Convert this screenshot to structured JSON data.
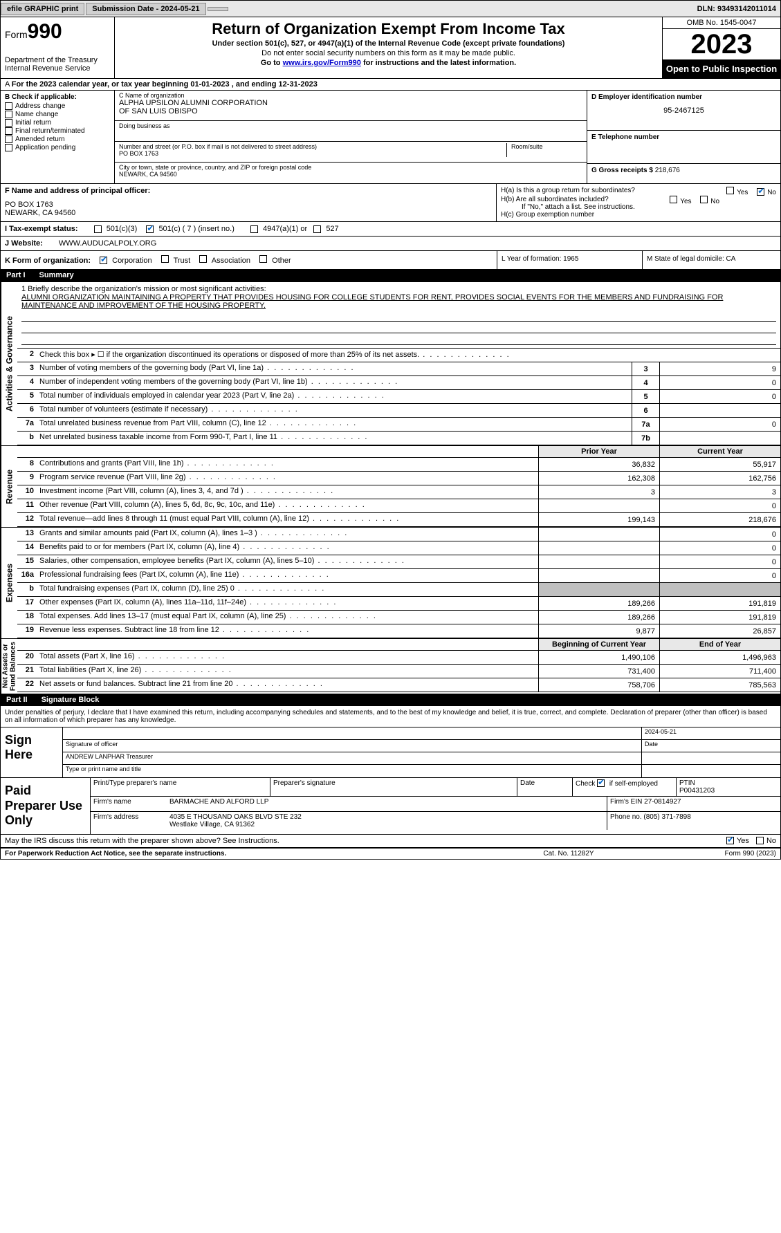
{
  "topbar": {
    "efile": "efile GRAPHIC print",
    "sub_label": "Submission Date - 2024-05-21",
    "dln": "DLN: 93493142011014"
  },
  "header": {
    "form_label": "Form",
    "form_num": "990",
    "dept": "Department of the Treasury\nInternal Revenue Service",
    "title": "Return of Organization Exempt From Income Tax",
    "sub1": "Under section 501(c), 527, or 4947(a)(1) of the Internal Revenue Code (except private foundations)",
    "sub2": "Do not enter social security numbers on this form as it may be made public.",
    "sub3_pre": "Go to ",
    "sub3_link": "www.irs.gov/Form990",
    "sub3_post": " for instructions and the latest information.",
    "omb": "OMB No. 1545-0047",
    "year": "2023",
    "open": "Open to Public Inspection"
  },
  "cal_year": "For the 2023 calendar year, or tax year beginning 01-01-2023    , and ending 12-31-2023",
  "boxB": {
    "hdr": "B Check if applicable:",
    "items": [
      "Address change",
      "Name change",
      "Initial return",
      "Final return/terminated",
      "Amended return",
      "Application pending"
    ]
  },
  "boxC": {
    "name_lbl": "C Name of organization",
    "name1": "ALPHA UPSILON ALUMNI CORPORATION",
    "name2": "OF SAN LUIS OBISPO",
    "dba_lbl": "Doing business as",
    "street_lbl": "Number and street (or P.O. box if mail is not delivered to street address)",
    "room_lbl": "Room/suite",
    "street": "PO BOX 1763",
    "city_lbl": "City or town, state or province, country, and ZIP or foreign postal code",
    "city": "NEWARK, CA  94560"
  },
  "boxD": {
    "lbl": "D Employer identification number",
    "val": "95-2467125"
  },
  "boxE": {
    "lbl": "E Telephone number"
  },
  "boxG": {
    "lbl": "G Gross receipts $",
    "val": "218,676"
  },
  "boxF": {
    "lbl": "F  Name and address of principal officer:",
    "l1": "PO BOX 1763",
    "l2": "NEWARK, CA  94560"
  },
  "boxH": {
    "ha": "H(a)  Is this a group return for subordinates?",
    "hb": "H(b)  Are all subordinates included?",
    "note": "If \"No,\" attach a list. See instructions.",
    "hc": "H(c)  Group exemption number",
    "yes": "Yes",
    "no": "No"
  },
  "boxI": {
    "lbl": "I    Tax-exempt status:",
    "o1": "501(c)(3)",
    "o2": "501(c) ( 7 ) (insert no.)",
    "o3": "4947(a)(1) or",
    "o4": "527"
  },
  "boxJ": {
    "lbl": "J    Website:",
    "val": "WWW.AUDUCALPOLY.ORG"
  },
  "boxK": {
    "lbl": "K Form of organization:",
    "o1": "Corporation",
    "o2": "Trust",
    "o3": "Association",
    "o4": "Other"
  },
  "boxL": {
    "lbl": "L Year of formation: 1965"
  },
  "boxM": {
    "lbl": "M State of legal domicile: CA"
  },
  "parts": {
    "p1": "Part I",
    "p1t": "Summary",
    "p2": "Part II",
    "p2t": "Signature Block"
  },
  "mission": {
    "lbl": "1   Briefly describe the organization's mission or most significant activities:",
    "txt": "ALUMNI ORGANIZATION MAINTAINING A PROPERTY THAT PROVIDES HOUSING FOR COLLEGE STUDENTS FOR RENT, PROVIDES SOCIAL EVENTS FOR THE MEMBERS AND FUNDRAISING FOR MAINTENANCE AND IMPROVEMENT OF THE HOUSING PROPERTY."
  },
  "gov_lines": [
    {
      "n": "2",
      "t": "Check this box ▸ ☐ if the organization discontinued its operations or disposed of more than 25% of its net assets.",
      "k": "",
      "v": ""
    },
    {
      "n": "3",
      "t": "Number of voting members of the governing body (Part VI, line 1a)",
      "k": "3",
      "v": "9"
    },
    {
      "n": "4",
      "t": "Number of independent voting members of the governing body (Part VI, line 1b)",
      "k": "4",
      "v": "0"
    },
    {
      "n": "5",
      "t": "Total number of individuals employed in calendar year 2023 (Part V, line 2a)",
      "k": "5",
      "v": "0"
    },
    {
      "n": "6",
      "t": "Total number of volunteers (estimate if necessary)",
      "k": "6",
      "v": ""
    },
    {
      "n": "7a",
      "t": "Total unrelated business revenue from Part VIII, column (C), line 12",
      "k": "7a",
      "v": "0"
    },
    {
      "n": "b",
      "t": "Net unrelated business taxable income from Form 990-T, Part I, line 11",
      "k": "7b",
      "v": ""
    }
  ],
  "col_hdrs": {
    "prior": "Prior Year",
    "current": "Current Year",
    "beg": "Beginning of Current Year",
    "end": "End of Year"
  },
  "rev_lines": [
    {
      "n": "8",
      "t": "Contributions and grants (Part VIII, line 1h)",
      "p": "36,832",
      "c": "55,917"
    },
    {
      "n": "9",
      "t": "Program service revenue (Part VIII, line 2g)",
      "p": "162,308",
      "c": "162,756"
    },
    {
      "n": "10",
      "t": "Investment income (Part VIII, column (A), lines 3, 4, and 7d )",
      "p": "3",
      "c": "3"
    },
    {
      "n": "11",
      "t": "Other revenue (Part VIII, column (A), lines 5, 6d, 8c, 9c, 10c, and 11e)",
      "p": "",
      "c": "0"
    },
    {
      "n": "12",
      "t": "Total revenue—add lines 8 through 11 (must equal Part VIII, column (A), line 12)",
      "p": "199,143",
      "c": "218,676"
    }
  ],
  "exp_lines": [
    {
      "n": "13",
      "t": "Grants and similar amounts paid (Part IX, column (A), lines 1–3 )",
      "p": "",
      "c": "0"
    },
    {
      "n": "14",
      "t": "Benefits paid to or for members (Part IX, column (A), line 4)",
      "p": "",
      "c": "0"
    },
    {
      "n": "15",
      "t": "Salaries, other compensation, employee benefits (Part IX, column (A), lines 5–10)",
      "p": "",
      "c": "0"
    },
    {
      "n": "16a",
      "t": "Professional fundraising fees (Part IX, column (A), line 11e)",
      "p": "",
      "c": "0"
    },
    {
      "n": "b",
      "t": "Total fundraising expenses (Part IX, column (D), line 25) 0",
      "p": "GREY",
      "c": "GREY"
    },
    {
      "n": "17",
      "t": "Other expenses (Part IX, column (A), lines 11a–11d, 11f–24e)",
      "p": "189,266",
      "c": "191,819"
    },
    {
      "n": "18",
      "t": "Total expenses. Add lines 13–17 (must equal Part IX, column (A), line 25)",
      "p": "189,266",
      "c": "191,819"
    },
    {
      "n": "19",
      "t": "Revenue less expenses. Subtract line 18 from line 12",
      "p": "9,877",
      "c": "26,857"
    }
  ],
  "na_lines": [
    {
      "n": "20",
      "t": "Total assets (Part X, line 16)",
      "p": "1,490,106",
      "c": "1,496,963"
    },
    {
      "n": "21",
      "t": "Total liabilities (Part X, line 26)",
      "p": "731,400",
      "c": "711,400"
    },
    {
      "n": "22",
      "t": "Net assets or fund balances. Subtract line 21 from line 20",
      "p": "758,706",
      "c": "785,563"
    }
  ],
  "vtabs": {
    "gov": "Activities & Governance",
    "rev": "Revenue",
    "exp": "Expenses",
    "na": "Net Assets or\nFund Balances"
  },
  "sig_intro": "Under penalties of perjury, I declare that I have examined this return, including accompanying schedules and statements, and to the best of my knowledge and belief, it is true, correct, and complete. Declaration of preparer (other than officer) is based on all information of which preparer has any knowledge.",
  "sign": {
    "lbl": "Sign Here",
    "date": "2024-05-21",
    "sig_lbl": "Signature of officer",
    "name": "ANDREW LANPHAR  Treasurer",
    "type_lbl": "Type or print name and title",
    "date_lbl": "Date"
  },
  "paid": {
    "lbl": "Paid Preparer Use Only",
    "h1": "Print/Type preparer's name",
    "h2": "Preparer's signature",
    "h3": "Date",
    "h4_pre": "Check",
    "h4": "if self-employed",
    "h5": "PTIN",
    "ptin": "P00431203",
    "firm_lbl": "Firm's name",
    "firm": "BARMACHE AND ALFORD LLP",
    "ein_lbl": "Firm's EIN",
    "ein": "27-0814927",
    "addr_lbl": "Firm's address",
    "addr1": "4035 E THOUSAND OAKS BLVD STE 232",
    "addr2": "Westlake Village, CA  91362",
    "phone_lbl": "Phone no.",
    "phone": "(805) 371-7898"
  },
  "discuss": "May the IRS discuss this return with the preparer shown above? See Instructions.",
  "footer": {
    "a": "For Paperwork Reduction Act Notice, see the separate instructions.",
    "b": "Cat. No. 11282Y",
    "c": "Form 990 (2023)"
  }
}
